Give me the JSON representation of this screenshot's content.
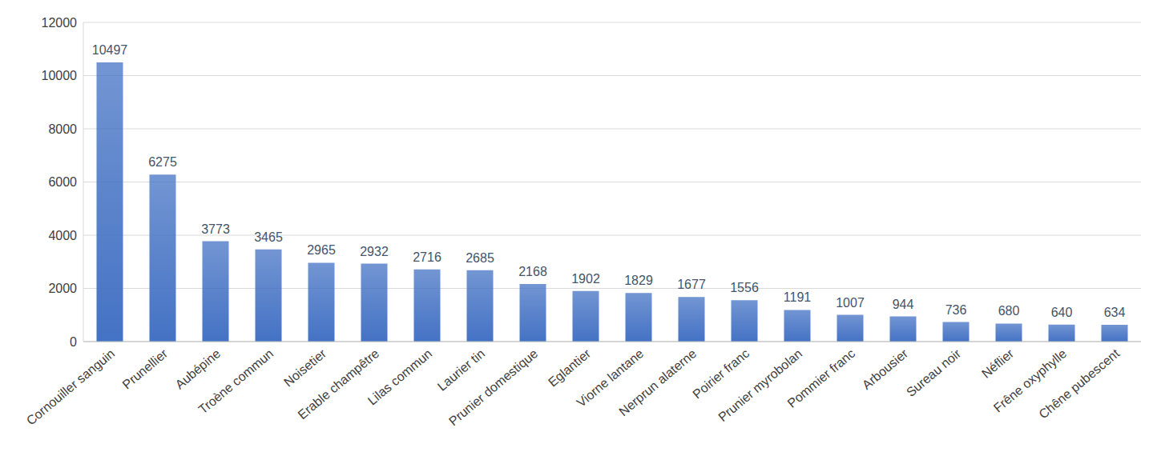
{
  "chart_data": {
    "type": "bar",
    "categories": [
      "Cornouiller sanguin",
      "Prunellier",
      "Aubépine",
      "Troène commun",
      "Noisetier",
      "Erable champêtre",
      "Lilas commun",
      "Laurier tin",
      "Prunier domestique",
      "Eglantier",
      "Viorne lantane",
      "Nerprun alaterne",
      "Poirier franc",
      "Prunier myrobolan",
      "Pommier franc",
      "Arbousier",
      "Sureau noir",
      "Néflier",
      "Frêne oxyphylle",
      "Chêne pubescent"
    ],
    "values": [
      10497,
      6275,
      3773,
      3465,
      2965,
      2932,
      2716,
      2685,
      2168,
      1902,
      1829,
      1677,
      1556,
      1191,
      1007,
      944,
      736,
      680,
      640,
      634
    ],
    "color": "#4472c4",
    "ylim": [
      0,
      12000
    ],
    "yticks": [
      0,
      2000,
      4000,
      6000,
      8000,
      10000,
      12000
    ],
    "grid": true,
    "data_labels": true
  }
}
